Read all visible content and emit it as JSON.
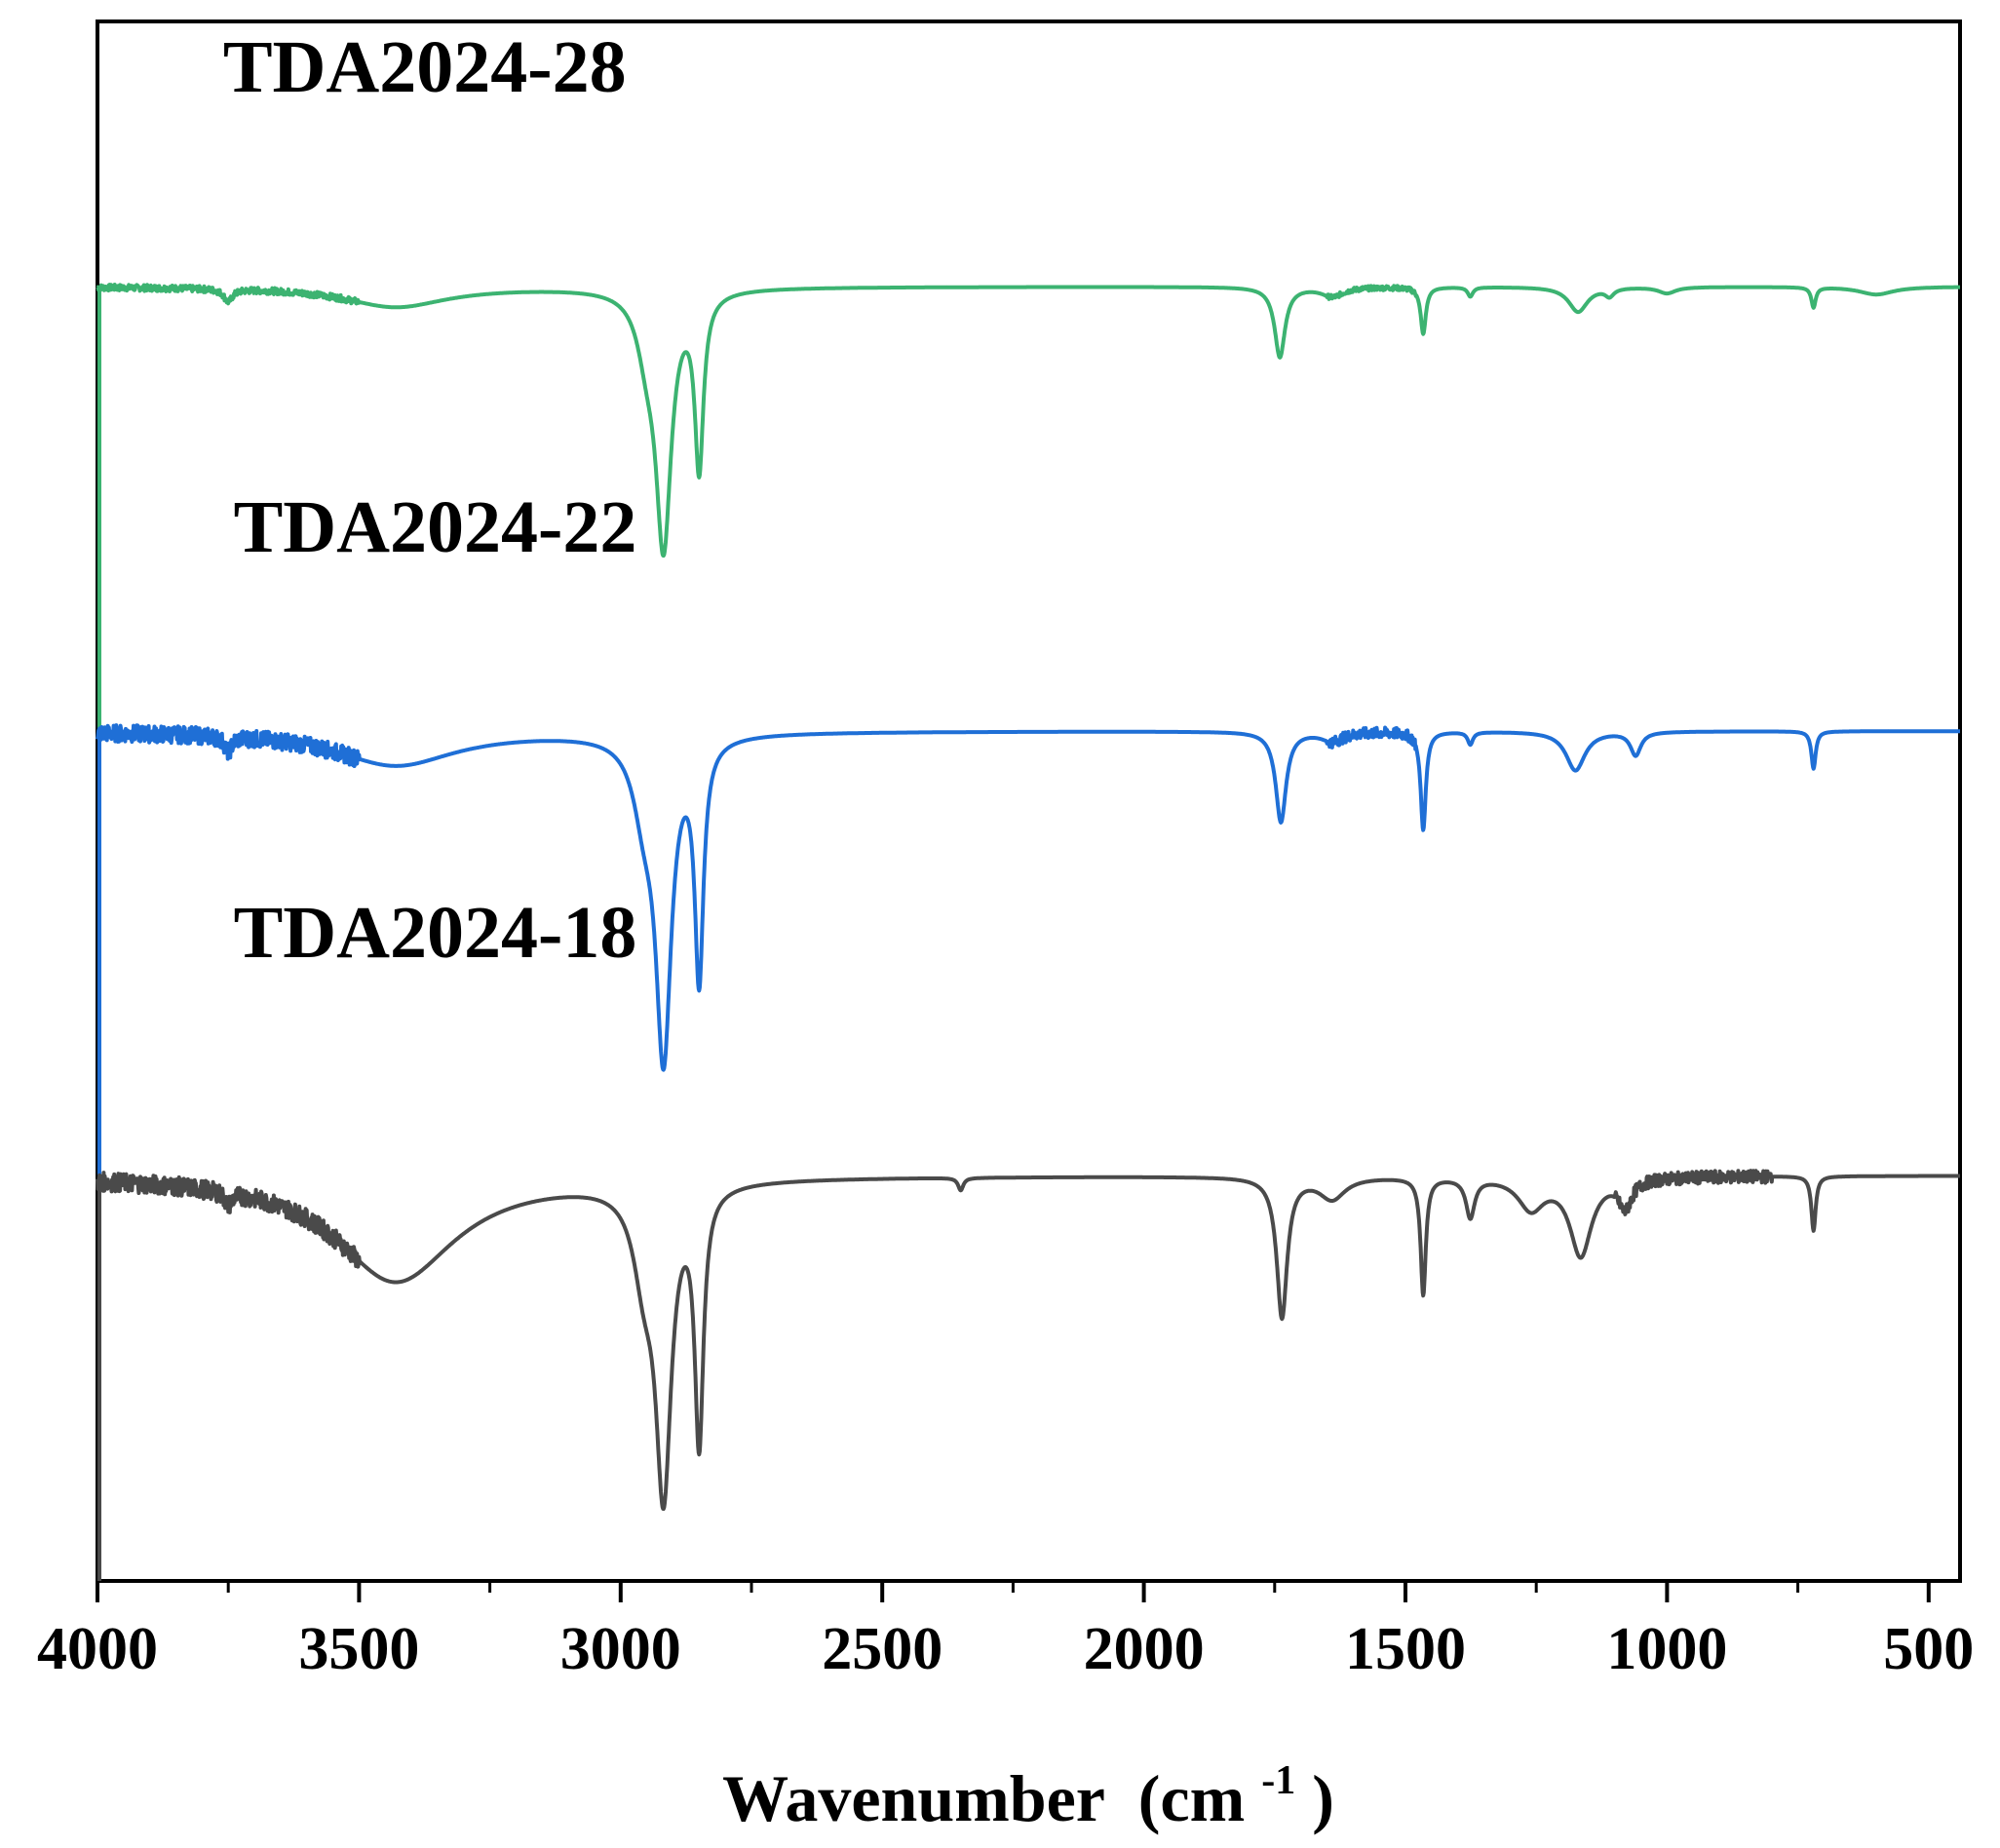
{
  "chart_data": {
    "type": "line",
    "title": "",
    "xlabel": "Wavenumber",
    "xlabel_unit_base": "(cm",
    "xlabel_unit_sup": "-1",
    "xlabel_unit_end": ")",
    "ylabel": "",
    "xlim": [
      4000,
      440
    ],
    "x_reversed": true,
    "ylim": [
      0,
      100
    ],
    "y_ticks_shown": false,
    "x_ticks": [
      4000,
      3500,
      3000,
      2500,
      2000,
      1500,
      1000,
      500
    ],
    "x_tick_labels": [
      "4000",
      "3500",
      "3000",
      "2500",
      "2000",
      "1500",
      "1000",
      "500"
    ],
    "x_minor_ticks": [
      3750,
      3250,
      2750,
      2250,
      1750,
      1250,
      750
    ],
    "grid": false,
    "legend": "none",
    "series": [
      {
        "name": "TDA2024-28",
        "color": "#3cb371",
        "label_anchor": [
          3760,
          95.5
        ],
        "offset": 0,
        "baseline": 83,
        "peaks": [
          {
            "center": 3430,
            "width": 120,
            "depth": 1.3
          },
          {
            "center": 3750,
            "width": 10,
            "depth": 0.8
          },
          {
            "center": 2918,
            "width": 18,
            "depth": 16
          },
          {
            "center": 2950,
            "width": 22,
            "depth": 3
          },
          {
            "center": 2850,
            "width": 10,
            "depth": 11
          },
          {
            "center": 1740,
            "width": 12,
            "depth": 4.5
          },
          {
            "center": 1640,
            "width": 25,
            "depth": 0.6
          },
          {
            "center": 1466,
            "width": 6,
            "depth": 3
          },
          {
            "center": 1376,
            "width": 6,
            "depth": 0.6
          },
          {
            "center": 1170,
            "width": 22,
            "depth": 1.6
          },
          {
            "center": 1110,
            "width": 10,
            "depth": 0.5
          },
          {
            "center": 1000,
            "width": 20,
            "depth": 0.4
          },
          {
            "center": 720,
            "width": 5,
            "depth": 1.3
          },
          {
            "center": 600,
            "width": 40,
            "depth": 0.5
          }
        ],
        "noise_ranges": [
          [
            4000,
            3500,
            0.2
          ],
          [
            1650,
            1480,
            0.15
          ]
        ]
      },
      {
        "name": "TDA2024-22",
        "color": "#1f6fd6",
        "label_anchor": [
          3740,
          66
        ],
        "offset": 0,
        "baseline": 54.5,
        "peaks": [
          {
            "center": 3430,
            "width": 140,
            "depth": 2.2
          },
          {
            "center": 3750,
            "width": 8,
            "depth": 1.0
          },
          {
            "center": 2918,
            "width": 18,
            "depth": 20
          },
          {
            "center": 2955,
            "width": 25,
            "depth": 4
          },
          {
            "center": 2850,
            "width": 10,
            "depth": 15
          },
          {
            "center": 1738,
            "width": 12,
            "depth": 5.8
          },
          {
            "center": 1640,
            "width": 25,
            "depth": 0.6
          },
          {
            "center": 1466,
            "width": 6,
            "depth": 6.3
          },
          {
            "center": 1376,
            "width": 6,
            "depth": 0.8
          },
          {
            "center": 1175,
            "width": 22,
            "depth": 2.5
          },
          {
            "center": 1060,
            "width": 12,
            "depth": 1.5
          },
          {
            "center": 720,
            "width": 5,
            "depth": 2.4
          }
        ],
        "noise_ranges": [
          [
            4000,
            3500,
            0.55
          ],
          [
            1650,
            1480,
            0.35
          ]
        ]
      },
      {
        "name": "TDA2024-18",
        "color": "#4a4a4a",
        "label_anchor": [
          3740,
          40
        ],
        "offset": 0,
        "baseline": 26,
        "peaks": [
          {
            "center": 3430,
            "width": 140,
            "depth": 6.8
          },
          {
            "center": 3750,
            "width": 8,
            "depth": 0.8
          },
          {
            "center": 2918,
            "width": 18,
            "depth": 19
          },
          {
            "center": 2955,
            "width": 25,
            "depth": 5
          },
          {
            "center": 2850,
            "width": 10,
            "depth": 16
          },
          {
            "center": 2350,
            "width": 6,
            "depth": 0.8
          },
          {
            "center": 1736,
            "width": 12,
            "depth": 9
          },
          {
            "center": 1640,
            "width": 30,
            "depth": 1.4
          },
          {
            "center": 1466,
            "width": 6,
            "depth": 7.5
          },
          {
            "center": 1376,
            "width": 10,
            "depth": 2.5
          },
          {
            "center": 1260,
            "width": 30,
            "depth": 2
          },
          {
            "center": 1165,
            "width": 25,
            "depth": 5
          },
          {
            "center": 1080,
            "width": 15,
            "depth": 1.8
          },
          {
            "center": 720,
            "width": 5,
            "depth": 3.5
          }
        ],
        "noise_ranges": [
          [
            4000,
            3500,
            0.6
          ],
          [
            1100,
            800,
            0.4
          ]
        ]
      }
    ]
  }
}
